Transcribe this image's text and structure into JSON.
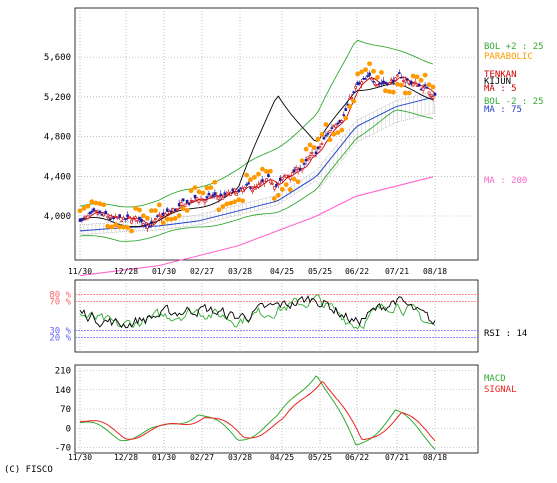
{
  "copyright": "(C) FISCO",
  "x_labels": [
    "11/30",
    "12/28",
    "01/30",
    "02/27",
    "03/28",
    "04/25",
    "05/25",
    "06/22",
    "07/21",
    "08/18"
  ],
  "colors": {
    "bollinger": "#33aa33",
    "parabolic": "#ff9900",
    "ma5": "#cc0000",
    "ma25": "#000000",
    "ma75": "#2244cc",
    "ma200": "#ff66cc",
    "cloud": "#888888",
    "candle_up": "#cc0000",
    "candle_down": "#1a1aa0",
    "rsi9": "#000000",
    "rsi14": "#33aa33",
    "macd": "#33aa33",
    "signal": "#ee2222",
    "rsi_hi": "#ff6666",
    "rsi_lo": "#6666ff"
  },
  "price_panel": {
    "y_ticks": [
      "4,000",
      "4,400",
      "4,800",
      "5,200",
      "5,600"
    ],
    "legend": {
      "bol_plus": "BOL +2 : 25",
      "parabolic": "PARABOLIC",
      "tenkan": "TENKAN",
      "kijun": "KIJUN",
      "ma5": "MA : 5",
      "bol_minus": "BOL -2 : 25",
      "ma75": "MA : 75",
      "ma200": "MA : 200"
    }
  },
  "rsi_panel": {
    "y_ticks": [
      "80 %",
      "70 %",
      "30 %",
      "20 %"
    ],
    "legend": {
      "rsi": "RSI : 14"
    }
  },
  "macd_panel": {
    "y_ticks": [
      "210",
      "140",
      "70",
      "0",
      "-70"
    ],
    "legend": {
      "macd": "MACD",
      "signal": "SIGNAL"
    }
  },
  "chart_data": [
    {
      "type": "candlestick",
      "panel": "price",
      "x": [
        "11/30",
        "12/28",
        "01/30",
        "02/27",
        "03/28",
        "04/25",
        "05/25",
        "06/22",
        "07/21",
        "08/18"
      ],
      "close": [
        3980,
        3900,
        3950,
        4150,
        4200,
        4300,
        4600,
        5300,
        5400,
        5250
      ],
      "ma25": [
        3970,
        3920,
        3940,
        4100,
        4250,
        5250,
        4700,
        5300,
        5300,
        5200
      ],
      "ma75": [
        3850,
        3880,
        3900,
        3950,
        4050,
        4150,
        4400,
        4900,
        5100,
        5200
      ],
      "ma200": [
        3400,
        3450,
        3500,
        3600,
        3700,
        3850,
        4000,
        4200,
        4300,
        4400
      ],
      "bollinger_upper": [
        4100,
        4100,
        4150,
        4300,
        4450,
        4700,
        5000,
        5800,
        5650,
        5550
      ],
      "bollinger_lower": [
        3800,
        3750,
        3800,
        3900,
        3950,
        4050,
        4250,
        4800,
        5050,
        5000
      ],
      "ylim": [
        3500,
        5800
      ]
    },
    {
      "type": "line",
      "panel": "rsi",
      "x": [
        "11/30",
        "12/28",
        "01/30",
        "02/27",
        "03/28",
        "04/25",
        "05/25",
        "06/22",
        "07/21",
        "08/18"
      ],
      "series": [
        {
          "name": "RSI : 14",
          "values": [
            52,
            35,
            48,
            58,
            45,
            60,
            72,
            38,
            70,
            35
          ]
        }
      ],
      "ylim": [
        0,
        100
      ]
    },
    {
      "type": "line",
      "panel": "macd",
      "x": [
        "11/30",
        "12/28",
        "01/30",
        "02/27",
        "03/28",
        "04/25",
        "05/25",
        "06/22",
        "07/21",
        "08/18"
      ],
      "series": [
        {
          "name": "MACD",
          "values": [
            20,
            -30,
            -10,
            60,
            -40,
            30,
            210,
            -70,
            60,
            -60
          ]
        },
        {
          "name": "SIGNAL",
          "values": [
            25,
            -25,
            -5,
            50,
            -30,
            20,
            190,
            -50,
            50,
            -50
          ]
        }
      ],
      "ylim": [
        -90,
        230
      ]
    }
  ]
}
